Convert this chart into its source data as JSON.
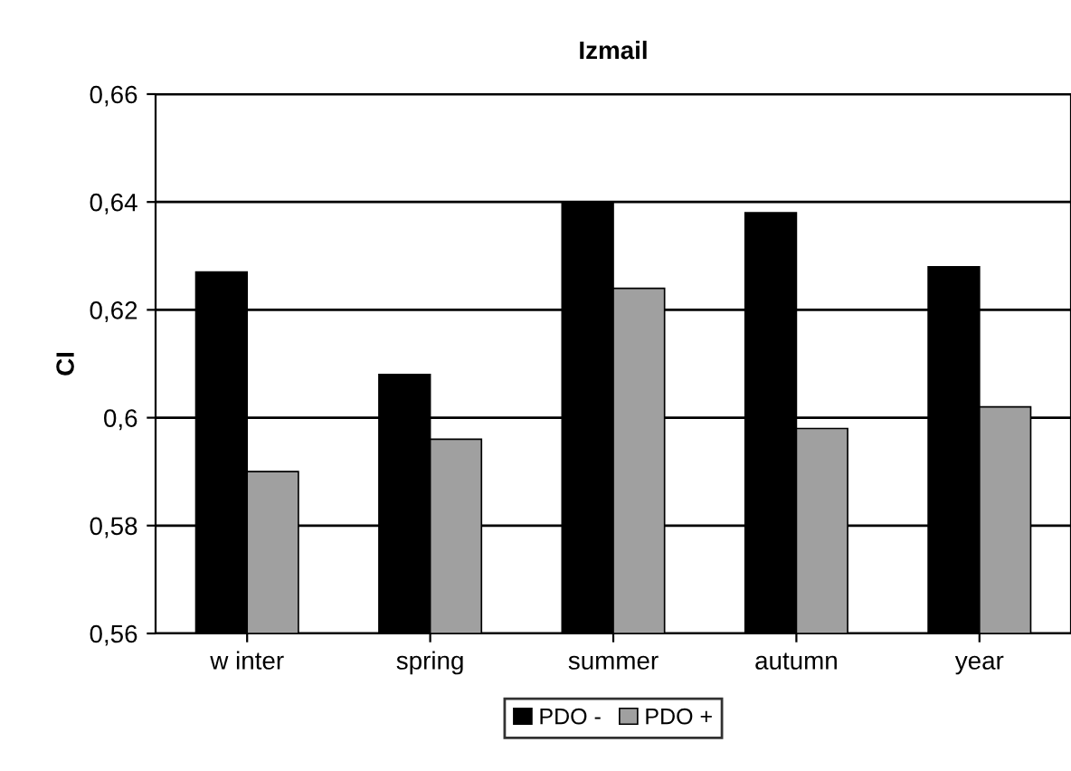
{
  "chart_data": {
    "type": "bar",
    "title": "Izmail",
    "ylabel": "CI",
    "categories": [
      "w inter",
      "spring",
      "summer",
      "autumn",
      "year"
    ],
    "series": [
      {
        "name": "PDO -",
        "color": "#000000",
        "values": [
          0.627,
          0.608,
          0.64,
          0.638,
          0.628
        ]
      },
      {
        "name": "PDO +",
        "color": "#a0a0a0",
        "values": [
          0.59,
          0.596,
          0.624,
          0.598,
          0.602
        ]
      }
    ],
    "ylim": [
      0.56,
      0.66
    ],
    "yticks": [
      {
        "value": 0.56,
        "label": "0,56"
      },
      {
        "value": 0.58,
        "label": "0,58"
      },
      {
        "value": 0.6,
        "label": "0,6"
      },
      {
        "value": 0.62,
        "label": "0,62"
      },
      {
        "value": 0.64,
        "label": "0,64"
      },
      {
        "value": 0.66,
        "label": "0,66"
      }
    ],
    "grid": "y",
    "legend": "bottom"
  }
}
